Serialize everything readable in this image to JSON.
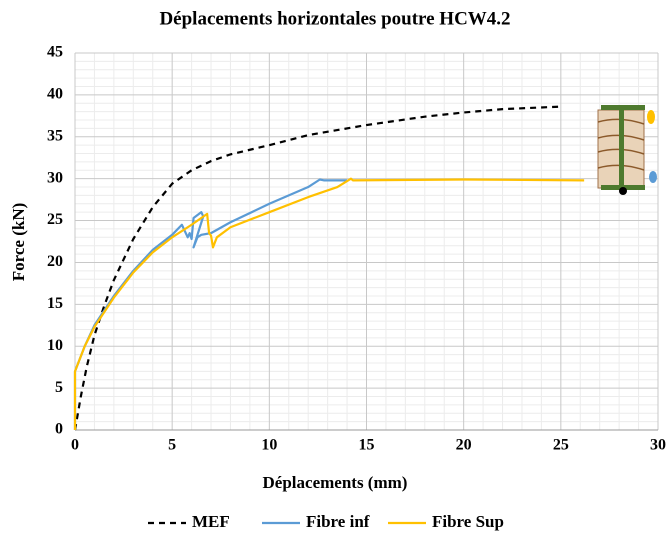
{
  "chart_data": {
    "type": "line",
    "title": "Déplacements horizontales poutre HCW4.2",
    "x_label": "Déplacements (mm)",
    "y_label": "Force (kN)",
    "xlim": [
      0,
      30
    ],
    "xticks": [
      0,
      5,
      10,
      15,
      20,
      25,
      30
    ],
    "ylim": [
      0,
      45
    ],
    "yticks": [
      0,
      5,
      10,
      15,
      20,
      25,
      30,
      35,
      40,
      45
    ],
    "grid": true,
    "minor_grid": true,
    "legend": "bottom",
    "series": [
      {
        "name": "MEF",
        "color": "#000000",
        "line_style": "dashed",
        "x": [
          0,
          0.3,
          0.6,
          1,
          1.5,
          2,
          3,
          4,
          5,
          6,
          7,
          8,
          10,
          12,
          15,
          18,
          20,
          22,
          25
        ],
        "values": [
          0,
          4,
          7.5,
          11.3,
          14.8,
          17.9,
          22.8,
          26.6,
          29.4,
          31,
          32.1,
          32.9,
          34,
          35.2,
          36.4,
          37.4,
          37.9,
          38.3,
          38.6
        ]
      },
      {
        "name": "Fibre inf",
        "color": "#5b9bd5",
        "line_style": "solid",
        "x": [
          0,
          0,
          0.5,
          1,
          2,
          3,
          4,
          5,
          5.5,
          5.8,
          5.9,
          6,
          6.1,
          6.5,
          6.6,
          6.1,
          6.3,
          6.5,
          7,
          8,
          10,
          12,
          12.6,
          12.8,
          14
        ],
        "values": [
          0,
          7,
          10,
          12.5,
          16,
          19,
          21.5,
          23.3,
          24.5,
          23,
          23.5,
          22.8,
          25.3,
          26,
          25.5,
          21.8,
          23,
          23.3,
          23.5,
          24.8,
          27,
          29,
          29.9,
          29.8,
          29.8
        ]
      },
      {
        "name": "Fibre Sup",
        "color": "#ffc000",
        "line_style": "solid",
        "x": [
          0,
          0,
          0.5,
          1,
          2,
          3,
          4,
          5,
          6,
          6.8,
          6.9,
          7,
          7.1,
          7.3,
          8,
          10,
          12,
          13.5,
          14.2,
          14.3,
          20,
          26.2
        ],
        "values": [
          0,
          7,
          10,
          12.3,
          15.8,
          18.8,
          21.2,
          23,
          24.5,
          25.8,
          23.5,
          23.2,
          21.8,
          23,
          24.2,
          26,
          27.8,
          29,
          30,
          29.8,
          29.9,
          29.8
        ]
      }
    ]
  }
}
